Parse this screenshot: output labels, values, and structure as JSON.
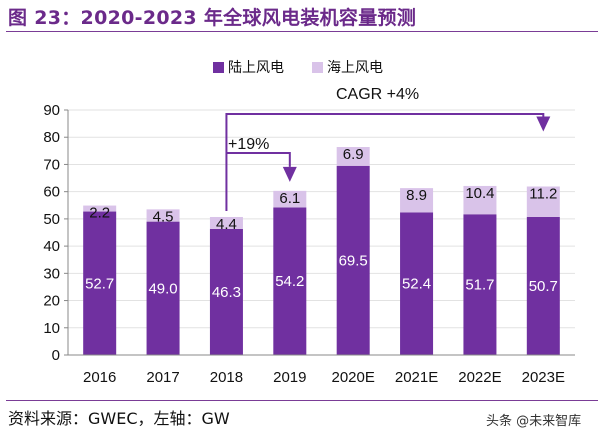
{
  "page": {
    "title": "图 23：2020-2023 年全球风电装机容量预测",
    "source": "资料来源：GWEC，左轴：GW",
    "watermark": "头条 @未来智库"
  },
  "annotations": {
    "cagr": "CAGR +4%",
    "growth": "+19%"
  },
  "colors": {
    "onshore": "#7030A0",
    "offshore": "#D9C3E9",
    "accent": "#7030A0",
    "title": "#6B2A8A"
  },
  "chart_data": {
    "type": "bar",
    "stacked": true,
    "categories": [
      "2016",
      "2017",
      "2018",
      "2019",
      "2020E",
      "2021E",
      "2022E",
      "2023E"
    ],
    "series": [
      {
        "name": "陆上风电",
        "values": [
          52.7,
          49.0,
          46.3,
          54.2,
          69.5,
          52.4,
          51.7,
          50.7
        ]
      },
      {
        "name": "海上风电",
        "values": [
          2.2,
          4.5,
          4.4,
          6.1,
          6.9,
          8.9,
          10.4,
          11.2
        ]
      }
    ],
    "onshore_label_text": [
      "52.7",
      "49.0",
      "46.3",
      "54.2",
      "69.5",
      "52.4",
      "51.7",
      "50.7"
    ],
    "offshore_label_text": [
      "2.2",
      "4.5",
      "4.4",
      "6.1",
      "6.9",
      "8.9",
      "10.4",
      "11.2"
    ],
    "ylim": [
      0,
      90
    ],
    "yticks": [
      0,
      10,
      20,
      30,
      40,
      50,
      60,
      70,
      80,
      90
    ],
    "legend_position": "top",
    "title": "",
    "xlabel": "",
    "ylabel": ""
  }
}
